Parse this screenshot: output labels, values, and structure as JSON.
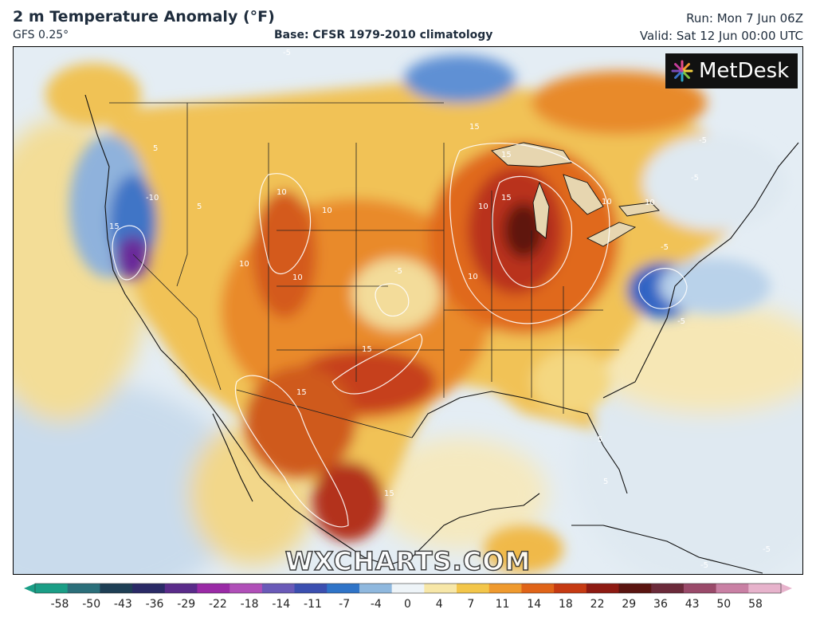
{
  "header": {
    "title": "2 m Temperature Anomaly (°F)",
    "model": "GFS 0.25°",
    "base": "Base: CFSR 1979-2010 climatology",
    "run": "Run: Mon 7 Jun 06Z",
    "valid": "Valid: Sat 12 Jun 00:00 UTC"
  },
  "logo": {
    "text": "MetDesk",
    "icon": "starburst-icon"
  },
  "watermark": "WXCHARTS.COM",
  "colorbar": {
    "ticks": [
      "-58",
      "-50",
      "-43",
      "-36",
      "-29",
      "-22",
      "-18",
      "-14",
      "-11",
      "-7",
      "-4",
      "0",
      "4",
      "7",
      "11",
      "14",
      "18",
      "22",
      "29",
      "36",
      "43",
      "50",
      "58"
    ],
    "colors": [
      "#1a9e86",
      "#2b6f7a",
      "#1e3f55",
      "#2a2a66",
      "#5a2b8a",
      "#9a2aa6",
      "#b04fb8",
      "#6a5ab8",
      "#3b4fb0",
      "#2f74c8",
      "#8fb8de",
      "#eef4f8",
      "#f7e7a8",
      "#f3c64a",
      "#ef9a2e",
      "#e06418",
      "#c63a12",
      "#8e1a12",
      "#5a1410",
      "#6b2a3a",
      "#9a4a6a",
      "#c980a4",
      "#e7b3cc"
    ]
  },
  "map": {
    "contour_labels": [
      "-5",
      "5",
      "10",
      "15",
      "-5",
      "15",
      "15",
      "10",
      "-10",
      "15",
      "10",
      "10",
      "10",
      "10",
      "-5",
      "15",
      "15",
      "10",
      "-5",
      "5",
      "-5",
      "5",
      "-5",
      "-5",
      "5",
      "-5",
      "15",
      "10"
    ],
    "anomaly_key_colors": {
      "ocean_cool": "#dbe8f2",
      "ocean_neutral": "#eef3f7",
      "warm_low": "#f6dd8a",
      "warm_mid": "#eea540",
      "warm_high": "#dc5f1c",
      "hot": "#b22a12",
      "very_hot": "#6e1610",
      "cool": "#8fb3de",
      "cold": "#2e63c2",
      "very_cold": "#6a2a9a"
    }
  }
}
